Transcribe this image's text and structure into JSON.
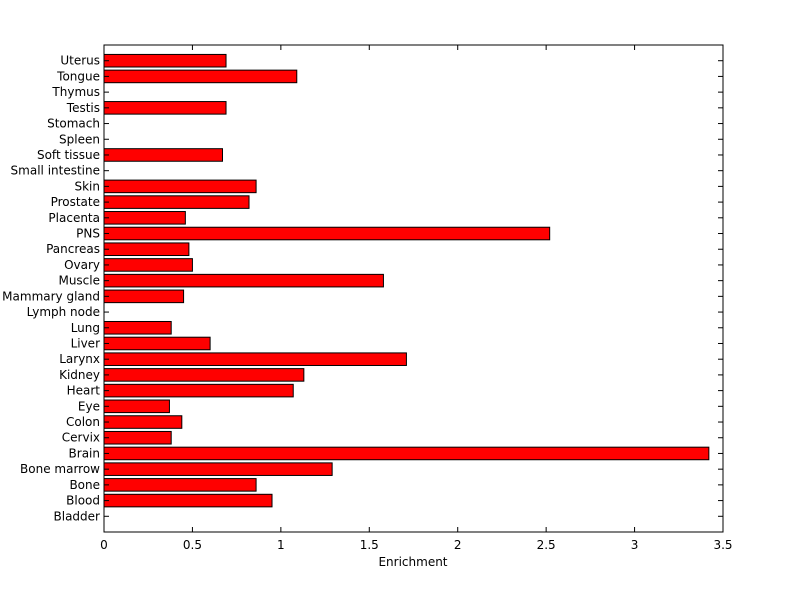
{
  "chart_data": {
    "type": "bar",
    "orientation": "horizontal",
    "xlabel": "Enrichment",
    "ylabel": "",
    "title": "",
    "xlim": [
      0,
      3.5
    ],
    "xticks": [
      0,
      0.5,
      1,
      1.5,
      2,
      2.5,
      3,
      3.5
    ],
    "xtick_labels": [
      "0",
      "0.5",
      "1",
      "1.5",
      "2",
      "2.5",
      "3",
      "3.5"
    ],
    "bar_color": "#ff0000",
    "bar_edge_color": "#000000",
    "categories": [
      "Bladder",
      "Blood",
      "Bone",
      "Bone marrow",
      "Brain",
      "Cervix",
      "Colon",
      "Eye",
      "Heart",
      "Kidney",
      "Larynx",
      "Liver",
      "Lung",
      "Lymph node",
      "Mammary gland",
      "Muscle",
      "Ovary",
      "Pancreas",
      "PNS",
      "Placenta",
      "Prostate",
      "Skin",
      "Small intestine",
      "Soft tissue",
      "Spleen",
      "Stomach",
      "Testis",
      "Thymus",
      "Tongue",
      "Uterus"
    ],
    "values": [
      0,
      0.95,
      0.86,
      1.29,
      3.42,
      0.38,
      0.44,
      0.37,
      1.07,
      1.13,
      1.71,
      0.6,
      0.38,
      0,
      0.45,
      1.58,
      0.5,
      0.48,
      2.52,
      0.46,
      0.82,
      0.86,
      0,
      0.67,
      0,
      0,
      0.69,
      0,
      1.09,
      0.69
    ],
    "grid": false,
    "legend": "none"
  }
}
